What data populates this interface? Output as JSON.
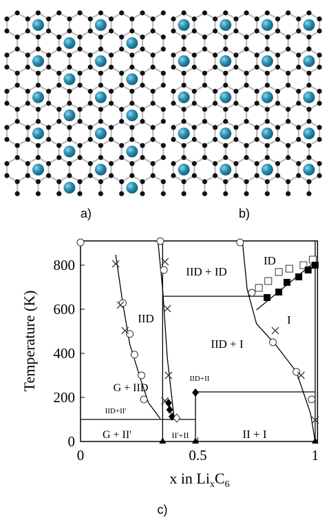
{
  "panel_labels": [
    "a)",
    "b)",
    "c)"
  ],
  "chart_data": {
    "type": "scatter",
    "ylabel": "Temperature (K)",
    "xlabel": [
      "x in Li",
      "x",
      "C",
      "6"
    ],
    "xlim": [
      0,
      1.01
    ],
    "ylim": [
      0,
      910
    ],
    "xticks": [
      0,
      0.5,
      1
    ],
    "yticks": [
      0,
      200,
      400,
      600,
      800
    ],
    "regions": [
      "IID + ID",
      "ID",
      "I",
      "IID",
      "IID + I",
      "G + IID",
      "IID+II'",
      "IID+II",
      "G + II'",
      "II'+II",
      "II + I"
    ],
    "boundaries": [
      {
        "x": [
          0.15,
          0.18,
          0.21,
          0.26,
          0.29,
          0.34
        ],
        "y": [
          847,
          628,
          441,
          269,
          175,
          103
        ]
      },
      {
        "x": [
          0.33,
          0.35,
          0.37,
          0.39,
          0.4
        ],
        "y": [
          909,
          691,
          378,
          191,
          97
        ]
      },
      {
        "x": [
          0.69,
          0.71,
          0.75,
          0.83,
          0.92,
          0.98,
          1.0
        ],
        "y": [
          909,
          691,
          534,
          441,
          316,
          128,
          0
        ]
      },
      {
        "x": [
          0.35,
          0.78
        ],
        "y": [
          659,
          659
        ]
      },
      {
        "x": [
          0.49,
          1.0
        ],
        "y": [
          225,
          225
        ]
      },
      {
        "x": [
          0,
          0.49
        ],
        "y": [
          100,
          100
        ]
      },
      {
        "x": [
          1.0,
          1.0
        ],
        "y": [
          0,
          909
        ]
      },
      {
        "x": [
          0.35,
          0.35
        ],
        "y": [
          0,
          909
        ]
      },
      {
        "x": [
          0.49,
          0.49
        ],
        "y": [
          0,
          225
        ]
      },
      {
        "x": [
          0.75,
          1.0
        ],
        "y": [
          597,
          816
        ]
      }
    ],
    "series": [
      {
        "marker": "circle",
        "x": [
          0.0,
          0.34,
          0.68,
          0.18,
          0.21,
          0.23,
          0.26,
          0.27,
          0.355,
          0.73,
          0.82,
          0.92,
          0.985
        ],
        "y": [
          903,
          909,
          903,
          628,
          488,
          394,
          300,
          191,
          778,
          675,
          450,
          316,
          191
        ]
      },
      {
        "marker": "cross",
        "x": [
          0.15,
          0.17,
          0.19,
          0.36,
          0.37,
          0.375,
          0.36,
          0.83,
          0.94,
          1.0
        ],
        "y": [
          806,
          619,
          503,
          816,
          603,
          300,
          184,
          503,
          300,
          97
        ]
      },
      {
        "marker": "open-square",
        "x": [
          0.76,
          0.8,
          0.845,
          0.89,
          0.95,
          0.99
        ],
        "y": [
          697,
          728,
          769,
          784,
          800,
          825
        ]
      },
      {
        "marker": "filled-square",
        "x": [
          0.795,
          0.845,
          0.88,
          0.93,
          0.97,
          1.0
        ],
        "y": [
          653,
          678,
          722,
          747,
          778,
          800
        ]
      },
      {
        "marker": "filled-diamond",
        "x": [
          0.375,
          0.38,
          0.39,
          0.49
        ],
        "y": [
          175,
          144,
          113,
          222
        ]
      },
      {
        "marker": "open-diamond",
        "x": [
          0.41
        ],
        "y": [
          106
        ]
      },
      {
        "marker": "filled-triangle",
        "x": [
          0.35,
          0.49,
          1.0
        ],
        "y": [
          0,
          0,
          0
        ]
      }
    ]
  }
}
